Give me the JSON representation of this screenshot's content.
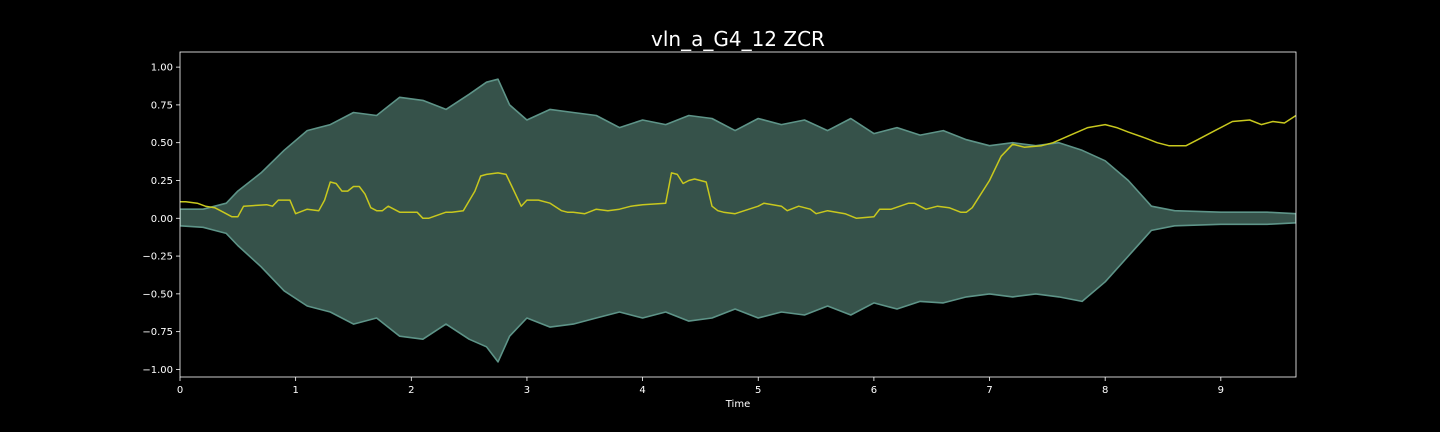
{
  "chart_data": {
    "type": "line",
    "title": "vln_a_G4_12 ZCR",
    "xlabel": "Time",
    "ylabel": "",
    "xlim": [
      0,
      9.65
    ],
    "ylim": [
      -1.05,
      1.1
    ],
    "xticks": [
      "0",
      "1",
      "2",
      "3",
      "4",
      "5",
      "6",
      "7",
      "8",
      "9"
    ],
    "yticks": [
      "1.00",
      "0.75",
      "0.50",
      "0.25",
      "0.00",
      "−0.25",
      "−0.50",
      "−0.75",
      "−1.00"
    ],
    "grid": false,
    "colors": {
      "background": "#000000",
      "waveform_fill": "#36524a",
      "waveform_edge": "#5e9488",
      "zcr_line": "#c8c81e",
      "text": "#ffffff"
    },
    "series": [
      {
        "kind": "waveform_envelope",
        "x": [
          0,
          0.2,
          0.3,
          0.4,
          0.5,
          0.7,
          0.9,
          1.1,
          1.3,
          1.5,
          1.7,
          1.9,
          2.1,
          2.3,
          2.5,
          2.65,
          2.75,
          2.85,
          3.0,
          3.2,
          3.4,
          3.6,
          3.8,
          4.0,
          4.2,
          4.4,
          4.6,
          4.8,
          5.0,
          5.2,
          5.4,
          5.6,
          5.8,
          6.0,
          6.2,
          6.4,
          6.6,
          6.8,
          7.0,
          7.2,
          7.4,
          7.6,
          7.8,
          8.0,
          8.2,
          8.4,
          8.6,
          9.0,
          9.4,
          9.65
        ],
        "max": [
          0.06,
          0.06,
          0.08,
          0.1,
          0.18,
          0.3,
          0.45,
          0.58,
          0.62,
          0.7,
          0.68,
          0.8,
          0.78,
          0.72,
          0.82,
          0.9,
          0.92,
          0.75,
          0.65,
          0.72,
          0.7,
          0.68,
          0.6,
          0.65,
          0.62,
          0.68,
          0.66,
          0.58,
          0.66,
          0.62,
          0.65,
          0.58,
          0.66,
          0.56,
          0.6,
          0.55,
          0.58,
          0.52,
          0.48,
          0.5,
          0.48,
          0.5,
          0.45,
          0.38,
          0.25,
          0.08,
          0.05,
          0.04,
          0.04,
          0.03
        ],
        "min": [
          -0.05,
          -0.06,
          -0.08,
          -0.1,
          -0.18,
          -0.32,
          -0.48,
          -0.58,
          -0.62,
          -0.7,
          -0.66,
          -0.78,
          -0.8,
          -0.7,
          -0.8,
          -0.85,
          -0.95,
          -0.78,
          -0.66,
          -0.72,
          -0.7,
          -0.66,
          -0.62,
          -0.66,
          -0.62,
          -0.68,
          -0.66,
          -0.6,
          -0.66,
          -0.62,
          -0.64,
          -0.58,
          -0.64,
          -0.56,
          -0.6,
          -0.55,
          -0.56,
          -0.52,
          -0.5,
          -0.52,
          -0.5,
          -0.52,
          -0.55,
          -0.42,
          -0.25,
          -0.08,
          -0.05,
          -0.04,
          -0.04,
          -0.03
        ]
      },
      {
        "kind": "zcr_line",
        "x": [
          0,
          0.05,
          0.15,
          0.22,
          0.3,
          0.35,
          0.45,
          0.5,
          0.55,
          0.75,
          0.8,
          0.85,
          0.95,
          1.0,
          1.1,
          1.2,
          1.25,
          1.3,
          1.35,
          1.4,
          1.45,
          1.5,
          1.55,
          1.6,
          1.65,
          1.7,
          1.75,
          1.8,
          1.9,
          2.05,
          2.1,
          2.15,
          2.3,
          2.35,
          2.45,
          2.55,
          2.6,
          2.65,
          2.75,
          2.82,
          2.87,
          2.95,
          3.0,
          3.1,
          3.2,
          3.3,
          3.35,
          3.4,
          3.5,
          3.6,
          3.7,
          3.8,
          3.9,
          4.0,
          4.2,
          4.25,
          4.3,
          4.35,
          4.4,
          4.45,
          4.55,
          4.6,
          4.65,
          4.7,
          4.8,
          5.0,
          5.05,
          5.2,
          5.25,
          5.35,
          5.45,
          5.5,
          5.6,
          5.75,
          5.85,
          6.0,
          6.05,
          6.15,
          6.3,
          6.35,
          6.45,
          6.55,
          6.65,
          6.75,
          6.8,
          6.85,
          7.0,
          7.1,
          7.2,
          7.3,
          7.45,
          7.55,
          7.7,
          7.85,
          8.0,
          8.1,
          8.2,
          8.35,
          8.45,
          8.55,
          8.7,
          8.8,
          8.95,
          9.1,
          9.25,
          9.35,
          9.45,
          9.55,
          9.65
        ],
        "y": [
          0.11,
          0.11,
          0.1,
          0.08,
          0.07,
          0.05,
          0.01,
          0.01,
          0.08,
          0.09,
          0.08,
          0.12,
          0.12,
          0.03,
          0.06,
          0.05,
          0.12,
          0.24,
          0.23,
          0.18,
          0.18,
          0.21,
          0.21,
          0.16,
          0.07,
          0.05,
          0.05,
          0.08,
          0.04,
          0.04,
          0.0,
          0.0,
          0.04,
          0.04,
          0.05,
          0.18,
          0.28,
          0.29,
          0.3,
          0.29,
          0.21,
          0.08,
          0.12,
          0.12,
          0.1,
          0.05,
          0.04,
          0.04,
          0.03,
          0.06,
          0.05,
          0.06,
          0.08,
          0.09,
          0.1,
          0.3,
          0.29,
          0.23,
          0.25,
          0.26,
          0.24,
          0.08,
          0.05,
          0.04,
          0.03,
          0.08,
          0.1,
          0.08,
          0.05,
          0.08,
          0.06,
          0.03,
          0.05,
          0.03,
          0.0,
          0.01,
          0.06,
          0.06,
          0.1,
          0.1,
          0.06,
          0.08,
          0.07,
          0.04,
          0.04,
          0.07,
          0.25,
          0.41,
          0.49,
          0.47,
          0.48,
          0.5,
          0.55,
          0.6,
          0.62,
          0.6,
          0.57,
          0.53,
          0.5,
          0.48,
          0.48,
          0.52,
          0.58,
          0.64,
          0.65,
          0.62,
          0.64,
          0.63,
          0.68
        ]
      }
    ]
  }
}
